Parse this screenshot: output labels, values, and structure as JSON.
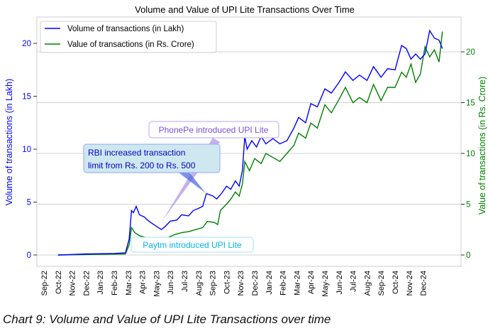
{
  "caption": "Chart 9: Volume and Value of UPI Lite Transactions over time",
  "chart_data": {
    "type": "line",
    "title": "Volume and Value of UPI Lite Transactions Over Time",
    "ylabel": "Volume of transactions (in Lakh)",
    "ylabel_right": "Value of transactions (in Rs. Crore)",
    "ylim": [
      -1.1,
      22.3
    ],
    "ylim_right": [
      -1.1,
      23.3
    ],
    "yticks": [
      0,
      5,
      10,
      15,
      20
    ],
    "yticks_right": [
      0,
      5,
      10,
      15,
      20
    ],
    "xticks": [
      "Sep-22",
      "Oct-22",
      "Nov-22",
      "Dec-22",
      "Jan-23",
      "Feb-23",
      "Mar-23",
      "Apr-23",
      "May-23",
      "Jun-23",
      "Jul-23",
      "Aug-23",
      "Sep-23",
      "Oct-23",
      "Nov-23",
      "Dec-23",
      "Jan-24",
      "Feb-24",
      "Mar-24",
      "Apr-24",
      "May-24",
      "Jun-24",
      "Jul-24",
      "Aug-24",
      "Sep-24",
      "Oct-24",
      "Nov-24",
      "Dec-24"
    ],
    "legend": "top-left",
    "colors": {
      "volume": "#0000ff",
      "value": "#008000"
    },
    "series": [
      {
        "name": "Volume of transactions (in Lakh)",
        "axis": "left",
        "points": [
          [
            "2022-10-01",
            0.0
          ],
          [
            "2022-11-01",
            0.05
          ],
          [
            "2022-12-01",
            0.1
          ],
          [
            "2023-01-01",
            0.12
          ],
          [
            "2023-02-01",
            0.15
          ],
          [
            "2023-02-25",
            0.2
          ],
          [
            "2023-03-03",
            1.5
          ],
          [
            "2023-03-08",
            4.2
          ],
          [
            "2023-03-12",
            4.0
          ],
          [
            "2023-03-18",
            4.6
          ],
          [
            "2023-03-25",
            3.8
          ],
          [
            "2023-04-05",
            3.6
          ],
          [
            "2023-04-15",
            3.2
          ],
          [
            "2023-04-25",
            2.9
          ],
          [
            "2023-05-05",
            2.6
          ],
          [
            "2023-05-12",
            2.4
          ],
          [
            "2023-05-20",
            2.7
          ],
          [
            "2023-06-01",
            3.2
          ],
          [
            "2023-06-15",
            3.3
          ],
          [
            "2023-06-25",
            3.8
          ],
          [
            "2023-07-10",
            3.7
          ],
          [
            "2023-07-20",
            4.2
          ],
          [
            "2023-08-01",
            4.4
          ],
          [
            "2023-08-10",
            4.6
          ],
          [
            "2023-08-18",
            5.8
          ],
          [
            "2023-09-01",
            5.6
          ],
          [
            "2023-09-10",
            5.3
          ],
          [
            "2023-09-20",
            5.8
          ],
          [
            "2023-10-01",
            6.5
          ],
          [
            "2023-10-10",
            6.2
          ],
          [
            "2023-10-20",
            7.0
          ],
          [
            "2023-10-28",
            6.5
          ],
          [
            "2023-11-05",
            8.0
          ],
          [
            "2023-11-10",
            11.2
          ],
          [
            "2023-11-15",
            10.0
          ],
          [
            "2023-11-25",
            10.8
          ],
          [
            "2023-12-05",
            10.2
          ],
          [
            "2023-12-15",
            11.2
          ],
          [
            "2023-12-25",
            10.5
          ],
          [
            "2024-01-10",
            11.0
          ],
          [
            "2024-01-25",
            10.5
          ],
          [
            "2024-02-10",
            10.8
          ],
          [
            "2024-02-25",
            12.0
          ],
          [
            "2024-03-05",
            13.0
          ],
          [
            "2024-03-20",
            12.5
          ],
          [
            "2024-04-01",
            14.3
          ],
          [
            "2024-04-15",
            14.0
          ],
          [
            "2024-05-01",
            15.7
          ],
          [
            "2024-05-15",
            15.3
          ],
          [
            "2024-06-01",
            16.3
          ],
          [
            "2024-06-15",
            17.3
          ],
          [
            "2024-07-01",
            16.5
          ],
          [
            "2024-07-15",
            17.0
          ],
          [
            "2024-08-01",
            16.5
          ],
          [
            "2024-08-15",
            17.8
          ],
          [
            "2024-09-01",
            16.8
          ],
          [
            "2024-09-15",
            17.6
          ],
          [
            "2024-10-01",
            17.5
          ],
          [
            "2024-10-15",
            19.8
          ],
          [
            "2024-10-25",
            19.5
          ],
          [
            "2024-11-05",
            18.5
          ],
          [
            "2024-11-15",
            19.0
          ],
          [
            "2024-11-25",
            18.5
          ],
          [
            "2024-12-05",
            19.0
          ],
          [
            "2024-12-15",
            21.2
          ],
          [
            "2024-12-25",
            20.5
          ],
          [
            "2025-01-05",
            20.3
          ],
          [
            "2025-01-12",
            19.5
          ]
        ]
      },
      {
        "name": "Value of transactions (in Rs. Crore)",
        "axis": "right",
        "points": [
          [
            "2022-10-01",
            0
          ],
          [
            "2023-02-25",
            0.1
          ],
          [
            "2023-03-03",
            1.0
          ],
          [
            "2023-03-08",
            2.7
          ],
          [
            "2023-03-15",
            2.2
          ],
          [
            "2023-03-25",
            1.9
          ],
          [
            "2023-04-10",
            1.7
          ],
          [
            "2023-04-25",
            1.5
          ],
          [
            "2023-05-10",
            1.4
          ],
          [
            "2023-05-25",
            1.7
          ],
          [
            "2023-06-10",
            2.0
          ],
          [
            "2023-06-25",
            2.2
          ],
          [
            "2023-07-10",
            2.3
          ],
          [
            "2023-07-25",
            2.5
          ],
          [
            "2023-08-10",
            2.7
          ],
          [
            "2023-08-20",
            3.3
          ],
          [
            "2023-09-05",
            3.2
          ],
          [
            "2023-09-12",
            3.0
          ],
          [
            "2023-09-18",
            4.4
          ],
          [
            "2023-10-01",
            5.0
          ],
          [
            "2023-10-10",
            5.5
          ],
          [
            "2023-10-20",
            6.2
          ],
          [
            "2023-10-28",
            5.8
          ],
          [
            "2023-11-05",
            7.0
          ],
          [
            "2023-11-10",
            9.2
          ],
          [
            "2023-11-20",
            8.3
          ],
          [
            "2023-12-01",
            9.5
          ],
          [
            "2023-12-15",
            9.0
          ],
          [
            "2023-12-25",
            10.0
          ],
          [
            "2024-01-10",
            9.6
          ],
          [
            "2024-01-25",
            9.2
          ],
          [
            "2024-02-10",
            10.0
          ],
          [
            "2024-02-25",
            10.8
          ],
          [
            "2024-03-05",
            12.0
          ],
          [
            "2024-03-20",
            11.5
          ],
          [
            "2024-04-01",
            13.0
          ],
          [
            "2024-04-15",
            12.5
          ],
          [
            "2024-05-01",
            14.8
          ],
          [
            "2024-05-15",
            14.0
          ],
          [
            "2024-06-01",
            15.3
          ],
          [
            "2024-06-15",
            16.5
          ],
          [
            "2024-07-01",
            15.0
          ],
          [
            "2024-07-15",
            15.5
          ],
          [
            "2024-08-01",
            15.0
          ],
          [
            "2024-08-15",
            16.8
          ],
          [
            "2024-09-01",
            15.2
          ],
          [
            "2024-09-15",
            16.5
          ],
          [
            "2024-10-01",
            16.5
          ],
          [
            "2024-10-15",
            18.0
          ],
          [
            "2024-10-25",
            17.5
          ],
          [
            "2024-11-05",
            18.8
          ],
          [
            "2024-11-15",
            17.0
          ],
          [
            "2024-11-25",
            17.8
          ],
          [
            "2024-12-05",
            20.5
          ],
          [
            "2024-12-15",
            19.5
          ],
          [
            "2024-12-25",
            20.2
          ],
          [
            "2025-01-05",
            19.0
          ],
          [
            "2025-01-12",
            22.0
          ]
        ]
      }
    ],
    "annotations": [
      {
        "text": "PhonePe introduced UPI Lite",
        "color": "#7b4fd6"
      },
      {
        "text": "RBI increased transaction",
        "text2": "limit from Rs. 200 to Rs. 500",
        "color": "#0000cc"
      },
      {
        "text": "Paytm introduced UPI Lite",
        "color": "#00b4e6"
      }
    ]
  }
}
